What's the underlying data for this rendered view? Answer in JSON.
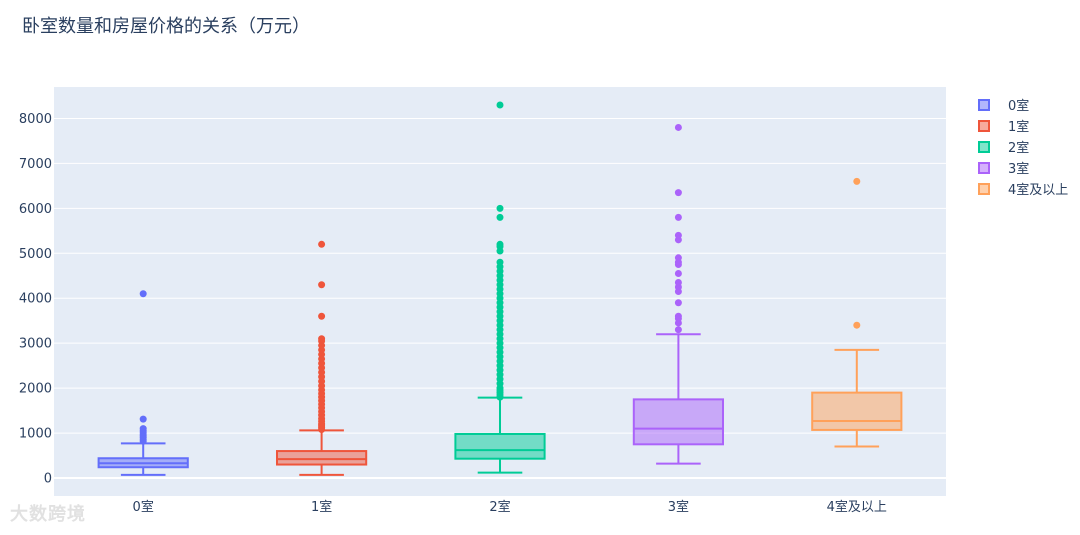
{
  "chart_data": {
    "type": "box",
    "title": "卧室数量和房屋价格的关系（万元）",
    "xlabel": "",
    "ylabel": "",
    "categories": [
      "0室",
      "1室",
      "2室",
      "3室",
      "4室及以上"
    ],
    "yticks": [
      0,
      1000,
      2000,
      3000,
      4000,
      5000,
      6000,
      7000,
      8000
    ],
    "ylim": [
      -400,
      8700
    ],
    "grid": true,
    "legend_position": "top-right",
    "series": [
      {
        "name": "0室",
        "color": "#636efa",
        "stats": {
          "min": 70,
          "q1": 240,
          "median": 330,
          "q3": 440,
          "max": 770
        },
        "outliers": [
          820,
          860,
          900,
          940,
          980,
          1020,
          1060,
          1100,
          1310,
          4100
        ]
      },
      {
        "name": "1室",
        "color": "#ef553b",
        "stats": {
          "min": 70,
          "q1": 300,
          "median": 420,
          "q3": 600,
          "max": 1060
        },
        "outliers": [
          1080,
          1120,
          1160,
          1200,
          1260,
          1320,
          1400,
          1480,
          1560,
          1640,
          1720,
          1800,
          1880,
          1960,
          2050,
          2150,
          2250,
          2350,
          2450,
          2550,
          2650,
          2750,
          2850,
          2950,
          3050,
          3100,
          3600,
          4300,
          5200
        ]
      },
      {
        "name": "2室",
        "color": "#00cc96",
        "stats": {
          "min": 120,
          "q1": 430,
          "median": 620,
          "q3": 980,
          "max": 1790
        },
        "outliers": [
          1800,
          1850,
          1900,
          1950,
          2000,
          2100,
          2200,
          2300,
          2400,
          2500,
          2600,
          2700,
          2800,
          2900,
          3000,
          3100,
          3200,
          3300,
          3400,
          3500,
          3600,
          3700,
          3800,
          3900,
          4000,
          4100,
          4200,
          4300,
          4400,
          4500,
          4600,
          4700,
          4800,
          5050,
          5150,
          5200,
          5800,
          6000,
          8300
        ]
      },
      {
        "name": "3室",
        "color": "#ab63fa",
        "stats": {
          "min": 320,
          "q1": 750,
          "median": 1100,
          "q3": 1750,
          "max": 3200
        },
        "outliers": [
          3300,
          3450,
          3550,
          3600,
          3900,
          4150,
          4250,
          4350,
          4550,
          4750,
          4800,
          4900,
          5300,
          5400,
          5800,
          6350,
          7800
        ]
      },
      {
        "name": "4室及以上",
        "color": "#ffa15a",
        "stats": {
          "min": 700,
          "q1": 1070,
          "median": 1270,
          "q3": 1900,
          "max": 2850
        },
        "outliers": [
          3400,
          6600
        ]
      }
    ]
  },
  "watermark": "大数跨境"
}
